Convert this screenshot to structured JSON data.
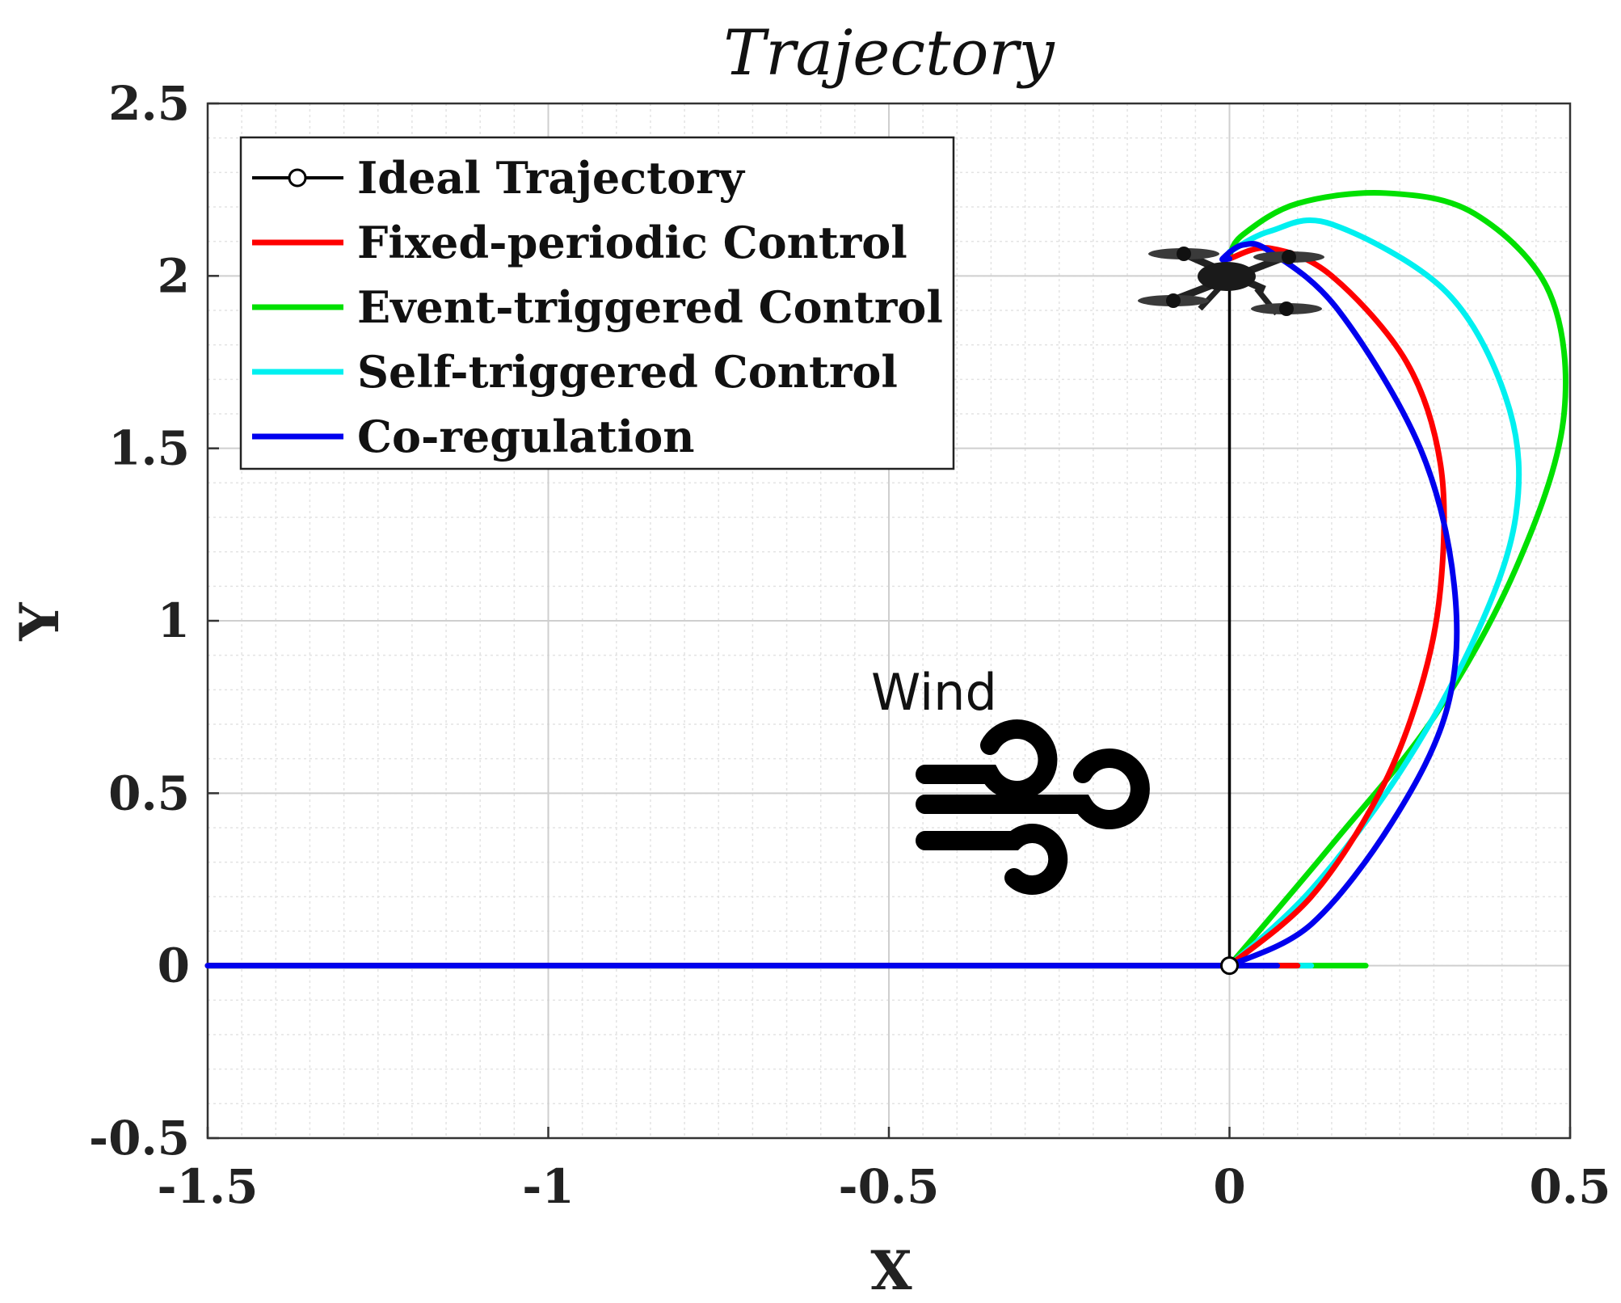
{
  "chart_data": {
    "type": "line",
    "title": "Trajectory",
    "xlabel": "X",
    "ylabel": "Y",
    "xlim": [
      -1.5,
      0.5
    ],
    "ylim": [
      -0.5,
      2.5
    ],
    "x_ticks": [
      -1.5,
      -1,
      -0.5,
      0,
      0.5
    ],
    "y_ticks": [
      -0.5,
      0,
      0.5,
      1,
      1.5,
      2,
      2.5
    ],
    "x_tick_labels": [
      "-1.5",
      "-1",
      "-0.5",
      "0",
      "0.5"
    ],
    "y_tick_labels": [
      "-0.5",
      "0",
      "0.5",
      "1",
      "1.5",
      "2",
      "2.5"
    ],
    "grid": true,
    "legend_position": "top-left",
    "annotations": [
      {
        "text": "Wind",
        "icon": "wind-icon"
      },
      {
        "text": "",
        "icon": "drone-icon"
      }
    ],
    "series": [
      {
        "name": "Ideal Trajectory",
        "color": "#000000",
        "marker": "circle",
        "x": [
          0,
          0
        ],
        "y": [
          0,
          1.97
        ]
      },
      {
        "name": "Fixed-periodic Control",
        "color": "#ff0000",
        "x": [
          -1.5,
          -0.5,
          0.1,
          0.0,
          0.12,
          0.22,
          0.28,
          0.31,
          0.31,
          0.26,
          0.15,
          0.06,
          0.0
        ],
        "y": [
          0,
          0,
          0,
          0,
          0.2,
          0.5,
          0.8,
          1.1,
          1.45,
          1.75,
          2.0,
          2.08,
          2.05
        ]
      },
      {
        "name": "Event-triggered Control",
        "color": "#00e000",
        "x": [
          -1.5,
          -0.5,
          0.2,
          0.0,
          0.15,
          0.3,
          0.42,
          0.49,
          0.47,
          0.36,
          0.23,
          0.1,
          0.02,
          0.0
        ],
        "y": [
          0,
          0,
          0,
          0,
          0.35,
          0.72,
          1.15,
          1.58,
          1.95,
          2.18,
          2.24,
          2.21,
          2.12,
          2.06
        ]
      },
      {
        "name": "Self-triggered Control",
        "color": "#00f0f0",
        "x": [
          -1.5,
          -0.5,
          0.12,
          0.0,
          0.12,
          0.25,
          0.36,
          0.42,
          0.41,
          0.32,
          0.15,
          0.06,
          0.0
        ],
        "y": [
          0,
          0,
          0,
          0,
          0.22,
          0.56,
          0.95,
          1.3,
          1.62,
          1.95,
          2.15,
          2.13,
          2.07
        ]
      },
      {
        "name": "Co-regulation",
        "color": "#0000ee",
        "x": [
          -1.5,
          -0.5,
          0.07,
          0.0,
          0.12,
          0.24,
          0.32,
          0.33,
          0.28,
          0.16,
          0.06,
          0.02,
          -0.01,
          0.0
        ],
        "y": [
          0,
          0,
          0,
          0,
          0.12,
          0.42,
          0.75,
          1.1,
          1.5,
          1.9,
          2.07,
          2.09,
          2.05,
          2.05
        ]
      }
    ]
  }
}
